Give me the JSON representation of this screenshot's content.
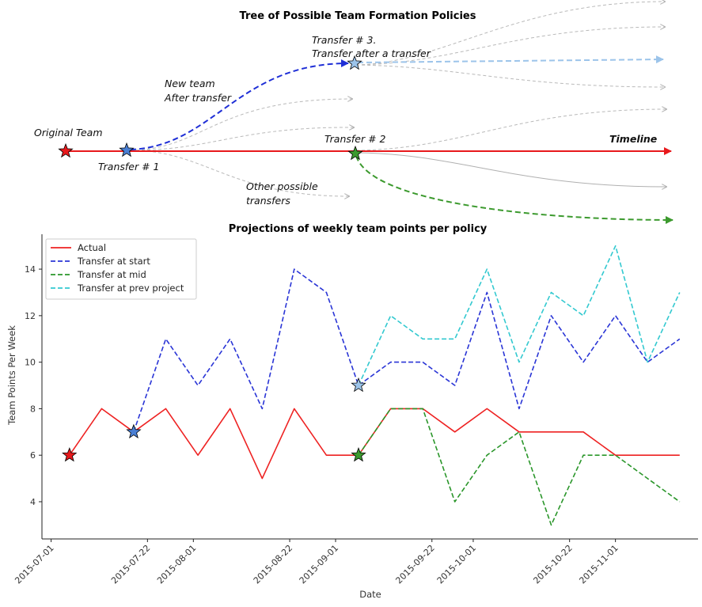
{
  "tree": {
    "title": "Tree of Possible Team Formation Policies",
    "labels": {
      "original_team": "Original Team",
      "transfer_1": "Transfer # 1",
      "transfer_2": "Transfer # 2",
      "transfer_3_line1": "Transfer # 3.",
      "transfer_3_line2": "Transfer after a transfer",
      "new_team_line1": "New team",
      "new_team_line2": "After transfer",
      "other_line1": "Other possible",
      "other_line2": "transfers",
      "timeline": "Timeline"
    },
    "colors": {
      "timeline": "#e8191c",
      "transfer_start": "#1f2fd6",
      "transfer_mid": "#3c9a2e",
      "transfer_prev": "#9cc4ea",
      "other": "#b9b9b9"
    }
  },
  "chart_data": {
    "type": "line",
    "title": "Projections of weekly team points per policy",
    "xlabel": "Date",
    "ylabel": "Team Points Per Week",
    "ylim": [
      2.4,
      15.5
    ],
    "xlim": [
      "2015-06-29",
      "2015-11-19"
    ],
    "yticks": [
      4,
      6,
      8,
      10,
      12,
      14
    ],
    "xticks": [
      "2015-07-01",
      "2015-07-22",
      "2015-08-01",
      "2015-08-22",
      "2015-09-01",
      "2015-09-22",
      "2015-10-01",
      "2015-10-22",
      "2015-11-01"
    ],
    "legend_position": "top-left",
    "grid": false,
    "series": [
      {
        "name": "Actual",
        "color": "#ee2222",
        "dash": "solid",
        "x": [
          "2015-07-05",
          "2015-07-12",
          "2015-07-19",
          "2015-07-26",
          "2015-08-02",
          "2015-08-09",
          "2015-08-16",
          "2015-08-23",
          "2015-08-30",
          "2015-09-06",
          "2015-09-13",
          "2015-09-20",
          "2015-09-27",
          "2015-10-04",
          "2015-10-11",
          "2015-10-18",
          "2015-10-25",
          "2015-11-01",
          "2015-11-08",
          "2015-11-15"
        ],
        "values": [
          6,
          8,
          7,
          8,
          6,
          8,
          5,
          8,
          6,
          6,
          8,
          8,
          7,
          8,
          7,
          7,
          7,
          6,
          6,
          6
        ]
      },
      {
        "name": "Transfer at start",
        "color": "#2a35d6",
        "dash": "dashed",
        "x": [
          "2015-07-19",
          "2015-07-26",
          "2015-08-02",
          "2015-08-09",
          "2015-08-16",
          "2015-08-23",
          "2015-08-30",
          "2015-09-06",
          "2015-09-13",
          "2015-09-20",
          "2015-09-27",
          "2015-10-04",
          "2015-10-11",
          "2015-10-18",
          "2015-10-25",
          "2015-11-01",
          "2015-11-08",
          "2015-11-15"
        ],
        "values": [
          7,
          11,
          9,
          11,
          8,
          14,
          13,
          9,
          10,
          10,
          9,
          13,
          8,
          12,
          10,
          12,
          10,
          11
        ]
      },
      {
        "name": "Transfer at mid",
        "color": "#2a962a",
        "dash": "dashed",
        "x": [
          "2015-09-06",
          "2015-09-13",
          "2015-09-20",
          "2015-09-27",
          "2015-10-04",
          "2015-10-11",
          "2015-10-18",
          "2015-10-25",
          "2015-11-01",
          "2015-11-08",
          "2015-11-15"
        ],
        "values": [
          6,
          8,
          8,
          4,
          6,
          7,
          3,
          6,
          6,
          5,
          4
        ]
      },
      {
        "name": "Transfer at prev project",
        "color": "#33c9d0",
        "dash": "dashed",
        "x": [
          "2015-09-06",
          "2015-09-13",
          "2015-09-20",
          "2015-09-27",
          "2015-10-04",
          "2015-10-11",
          "2015-10-18",
          "2015-10-25",
          "2015-11-01",
          "2015-11-08",
          "2015-11-15"
        ],
        "values": [
          9,
          12,
          11,
          11,
          14,
          10,
          13,
          12,
          15,
          10,
          13
        ]
      }
    ],
    "markers": [
      {
        "x": "2015-07-05",
        "y": 6,
        "color": "#e8191c"
      },
      {
        "x": "2015-07-19",
        "y": 7,
        "color": "#4a7fd4"
      },
      {
        "x": "2015-09-06",
        "y": 9,
        "color": "#9cc4ea"
      },
      {
        "x": "2015-09-06",
        "y": 6,
        "color": "#3c9a2e"
      }
    ]
  }
}
